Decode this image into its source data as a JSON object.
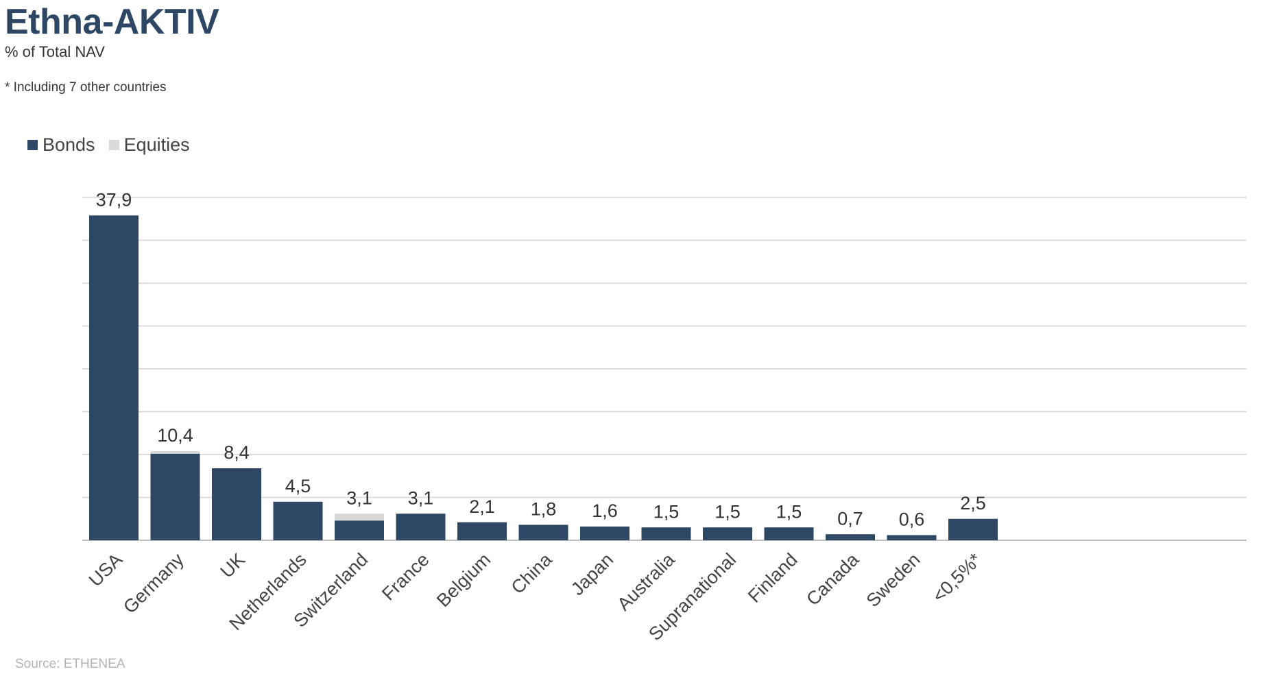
{
  "header": {
    "title": "Ethna-AKTIV",
    "subtitle": "% of Total NAV",
    "footnote": "* Including 7 other countries"
  },
  "source": "Source: ETHENEA",
  "colors": {
    "bonds": "#2d4765",
    "equities": "#d9d9d9",
    "grid": "#d4d4d4",
    "axis": "#bfbfbf"
  },
  "chart_data": {
    "type": "bar",
    "stacked": true,
    "categories": [
      "USA",
      "Germany",
      "UK",
      "Netherlands",
      "Switzerland",
      "France",
      "Belgium",
      "China",
      "Japan",
      "Australia",
      "Supranational",
      "Finland",
      "Canada",
      "Sweden",
      "<0,5%*"
    ],
    "series": [
      {
        "name": "Bonds",
        "values": [
          37.9,
          10.1,
          8.4,
          4.5,
          2.3,
          3.1,
          2.1,
          1.8,
          1.6,
          1.5,
          1.5,
          1.5,
          0.7,
          0.6,
          2.5
        ]
      },
      {
        "name": "Equities",
        "values": [
          0.0,
          0.3,
          0.0,
          0.0,
          0.8,
          0.0,
          0.0,
          0.0,
          0.0,
          0.0,
          0.0,
          0.0,
          0.0,
          0.0,
          0.0
        ]
      }
    ],
    "totals": [
      "37,9",
      "10,4",
      "8,4",
      "4,5",
      "3,1",
      "3,1",
      "2,1",
      "1,8",
      "1,6",
      "1,5",
      "1,5",
      "1,5",
      "0,7",
      "0,6",
      "2,5"
    ],
    "ylim": [
      0,
      40
    ],
    "grid": true,
    "gridlines": 8,
    "legend_position": "top-left"
  }
}
